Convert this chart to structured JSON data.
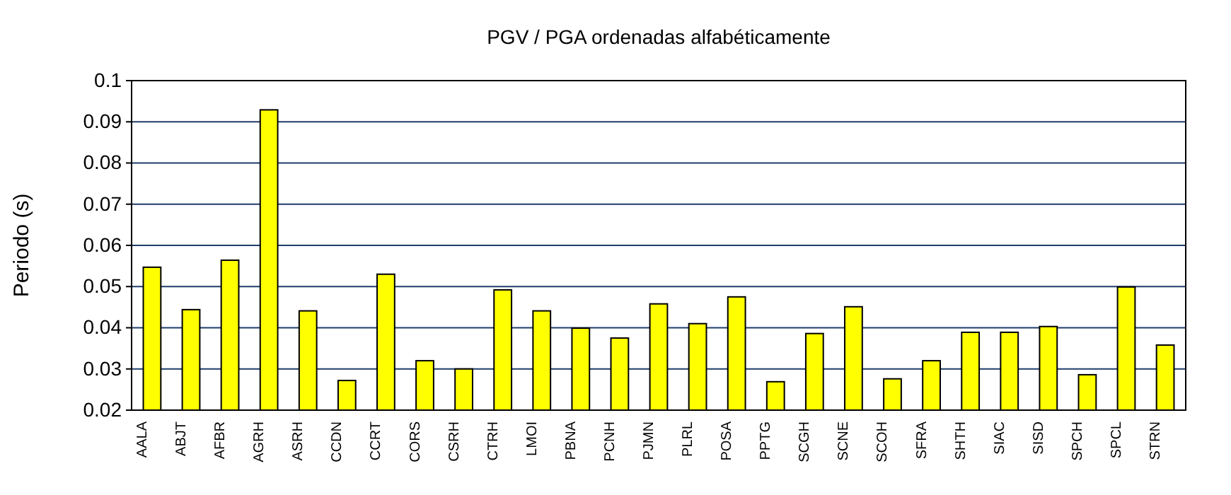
{
  "chart_data": {
    "type": "bar",
    "title": "PGV / PGA ordenadas alfabéticamente",
    "ylabel": "Periodo (s)",
    "categories": [
      "AALA",
      "ABJT",
      "AFBR",
      "AGRH",
      "ASRH",
      "CCDN",
      "CCRT",
      "CORS",
      "CSRH",
      "CTRH",
      "LMOI",
      "PBNA",
      "PCNH",
      "PJMN",
      "PLRL",
      "POSA",
      "PPTG",
      "SCGH",
      "SCNE",
      "SCOH",
      "SFRA",
      "SHTH",
      "SIAC",
      "SISD",
      "SPCH",
      "SPCL",
      "STRN"
    ],
    "values": [
      0.0547,
      0.0444,
      0.0564,
      0.0929,
      0.0441,
      0.0272,
      0.053,
      0.032,
      0.03,
      0.0492,
      0.0441,
      0.0399,
      0.0375,
      0.0458,
      0.041,
      0.0475,
      0.0269,
      0.0386,
      0.0451,
      0.0276,
      0.032,
      0.0389,
      0.0389,
      0.0403,
      0.0286,
      0.0499,
      0.0358
    ],
    "color": "#ffff00",
    "ylim": [
      0.02,
      0.1
    ],
    "yticks": [
      0.02,
      0.03,
      0.04,
      0.05,
      0.06,
      0.07,
      0.08,
      0.09,
      0.1
    ],
    "grid": "y"
  }
}
